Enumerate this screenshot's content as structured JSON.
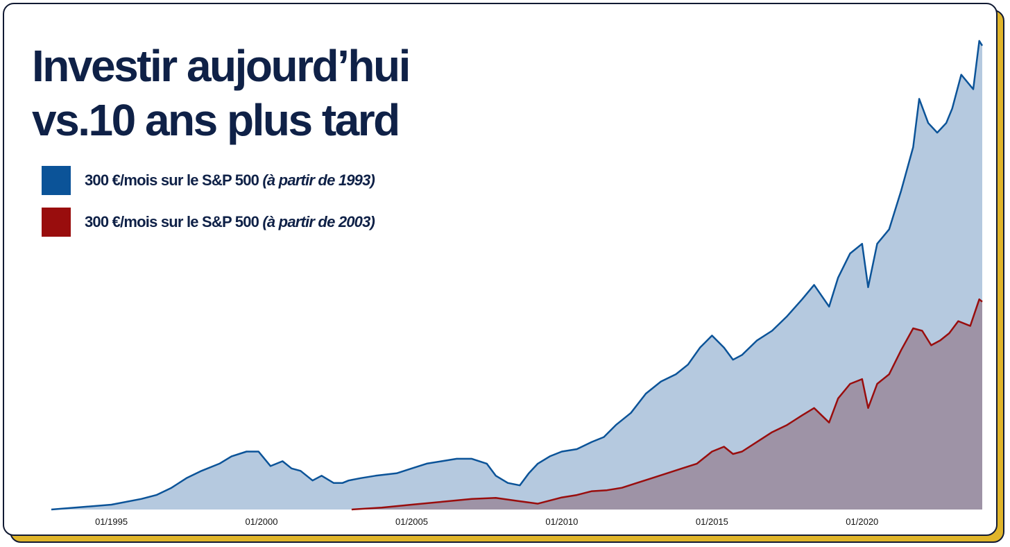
{
  "title_lines": [
    "Investir aujourd’hui",
    "vs.10 ans plus tard"
  ],
  "legend": [
    {
      "label": "300 €/mois sur le S&P 500",
      "note": "(à partir de 1993)",
      "color": "#0b5398"
    },
    {
      "label": "300 €/mois sur le S&P 500",
      "note": "(à partir de 2003)",
      "color": "#990d0d"
    }
  ],
  "colors": {
    "blue_line": "#0b5398",
    "blue_fill": "#b5c9df",
    "red_line": "#990d0d",
    "red_fill": "#9e93a6",
    "shadow": "#e0b52a",
    "border": "#111a33",
    "title": "#0f2147"
  },
  "chart_data": {
    "type": "area",
    "title": "Investir aujourd’hui vs.10 ans plus tard",
    "xlabel": "",
    "ylabel": "",
    "x_ticks": [
      "01/1995",
      "01/2000",
      "01/2005",
      "01/2010",
      "01/2015",
      "01/2020"
    ],
    "xlim": [
      1993.0,
      2024.0
    ],
    "ylim": [
      0,
      100
    ],
    "grid": false,
    "legend_position": "top-left",
    "series": [
      {
        "name": "300 €/mois sur le S&P 500 (à partir de 1993)",
        "x": [
          1993.0,
          1994.0,
          1995.0,
          1996.0,
          1996.5,
          1997.0,
          1997.5,
          1998.0,
          1998.6,
          1999.0,
          1999.5,
          1999.9,
          2000.3,
          2000.7,
          2001.0,
          2001.3,
          2001.7,
          2002.0,
          2002.4,
          2002.7,
          2002.9,
          2003.3,
          2003.8,
          2004.5,
          2005.0,
          2005.5,
          2006.0,
          2006.5,
          2007.0,
          2007.5,
          2007.8,
          2008.2,
          2008.6,
          2008.9,
          2009.2,
          2009.6,
          2010.0,
          2010.5,
          2011.0,
          2011.4,
          2011.8,
          2012.3,
          2012.8,
          2013.3,
          2013.8,
          2014.2,
          2014.6,
          2015.0,
          2015.4,
          2015.7,
          2016.0,
          2016.5,
          2017.0,
          2017.5,
          2018.0,
          2018.4,
          2018.9,
          2019.2,
          2019.6,
          2020.0,
          2020.2,
          2020.5,
          2020.9,
          2021.3,
          2021.7,
          2021.9,
          2022.2,
          2022.5,
          2022.8,
          2023.0,
          2023.3,
          2023.7,
          2023.9,
          2024.0
        ],
        "values": [
          0,
          0.5,
          1.0,
          2.2,
          3.0,
          4.5,
          6.5,
          8.0,
          9.5,
          11.0,
          12.0,
          12.0,
          9.0,
          10.0,
          8.5,
          8.0,
          6.0,
          7.0,
          5.5,
          5.5,
          6.0,
          6.5,
          7.0,
          7.5,
          8.5,
          9.5,
          10.0,
          10.5,
          10.5,
          9.5,
          7.0,
          5.5,
          5.0,
          7.5,
          9.5,
          11.0,
          12.0,
          12.5,
          14.0,
          15.0,
          17.5,
          20.0,
          24.0,
          26.5,
          28.0,
          30.0,
          33.5,
          36.0,
          33.5,
          31.0,
          32.0,
          35.0,
          37.0,
          40.0,
          43.5,
          46.5,
          42.0,
          48.0,
          53.0,
          55.0,
          46.0,
          55.0,
          58.0,
          66.0,
          75.0,
          85.0,
          80.0,
          78.0,
          80.0,
          83.0,
          90.0,
          87.0,
          97.0,
          96.0
        ]
      },
      {
        "name": "300 €/mois sur le S&P 500 (à partir de 2003)",
        "x": [
          2003.0,
          2004.0,
          2005.0,
          2006.0,
          2007.0,
          2007.8,
          2008.5,
          2009.2,
          2010.0,
          2010.5,
          2011.0,
          2011.5,
          2012.0,
          2012.5,
          2013.0,
          2013.5,
          2014.0,
          2014.5,
          2015.0,
          2015.4,
          2015.7,
          2016.0,
          2016.5,
          2017.0,
          2017.5,
          2018.0,
          2018.4,
          2018.9,
          2019.2,
          2019.6,
          2020.0,
          2020.2,
          2020.5,
          2020.9,
          2021.3,
          2021.7,
          2022.0,
          2022.3,
          2022.6,
          2022.9,
          2023.2,
          2023.6,
          2023.9,
          2024.0
        ],
        "values": [
          0,
          0.4,
          1.0,
          1.6,
          2.2,
          2.4,
          1.8,
          1.2,
          2.5,
          3.0,
          3.8,
          4.0,
          4.5,
          5.5,
          6.5,
          7.5,
          8.5,
          9.5,
          12.0,
          13.0,
          11.5,
          12.0,
          14.0,
          16.0,
          17.5,
          19.5,
          21.0,
          18.0,
          23.0,
          26.0,
          27.0,
          21.0,
          26.0,
          28.0,
          33.0,
          37.5,
          37.0,
          34.0,
          35.0,
          36.5,
          39.0,
          38.0,
          43.5,
          43.0
        ]
      }
    ]
  }
}
